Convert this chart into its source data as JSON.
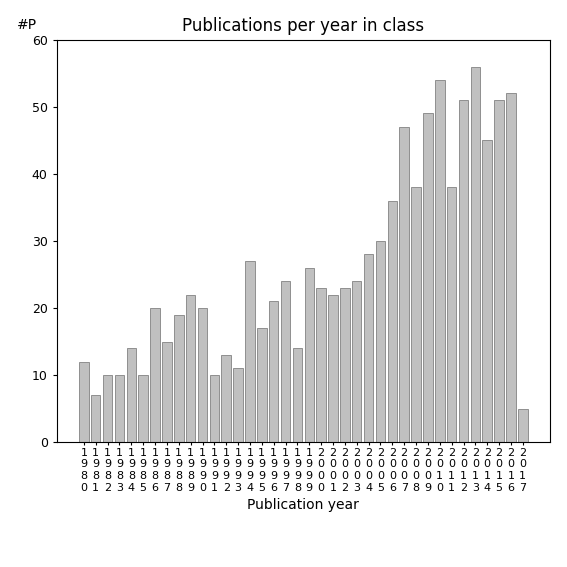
{
  "title": "Publications per year in class",
  "xlabel": "Publication year",
  "ylabel": "#P",
  "ylim": [
    0,
    60
  ],
  "yticks": [
    0,
    10,
    20,
    30,
    40,
    50,
    60
  ],
  "years": [
    "1980",
    "1981",
    "1982",
    "1983",
    "1984",
    "1985",
    "1986",
    "1987",
    "1988",
    "1989",
    "1990",
    "1991",
    "1992",
    "1993",
    "1994",
    "1995",
    "1996",
    "1997",
    "1998",
    "1999",
    "2000",
    "2001",
    "2002",
    "2003",
    "2004",
    "2005",
    "2006",
    "2007",
    "2008",
    "2009",
    "2010",
    "2011",
    "2012",
    "2013",
    "2014",
    "2015",
    "2016",
    "2017"
  ],
  "values": [
    12,
    7,
    10,
    10,
    14,
    10,
    20,
    15,
    19,
    22,
    20,
    10,
    13,
    11,
    27,
    17,
    21,
    24,
    14,
    26,
    23,
    22,
    23,
    24,
    28,
    30,
    36,
    47,
    38,
    49,
    54,
    38,
    51,
    56,
    45,
    51,
    52,
    5
  ],
  "bar_color": "#c0c0c0",
  "bar_edge_color": "#707070",
  "background_color": "#ffffff",
  "title_fontsize": 12,
  "label_fontsize": 10,
  "tick_fontsize": 9,
  "ylabel_fontsize": 10
}
